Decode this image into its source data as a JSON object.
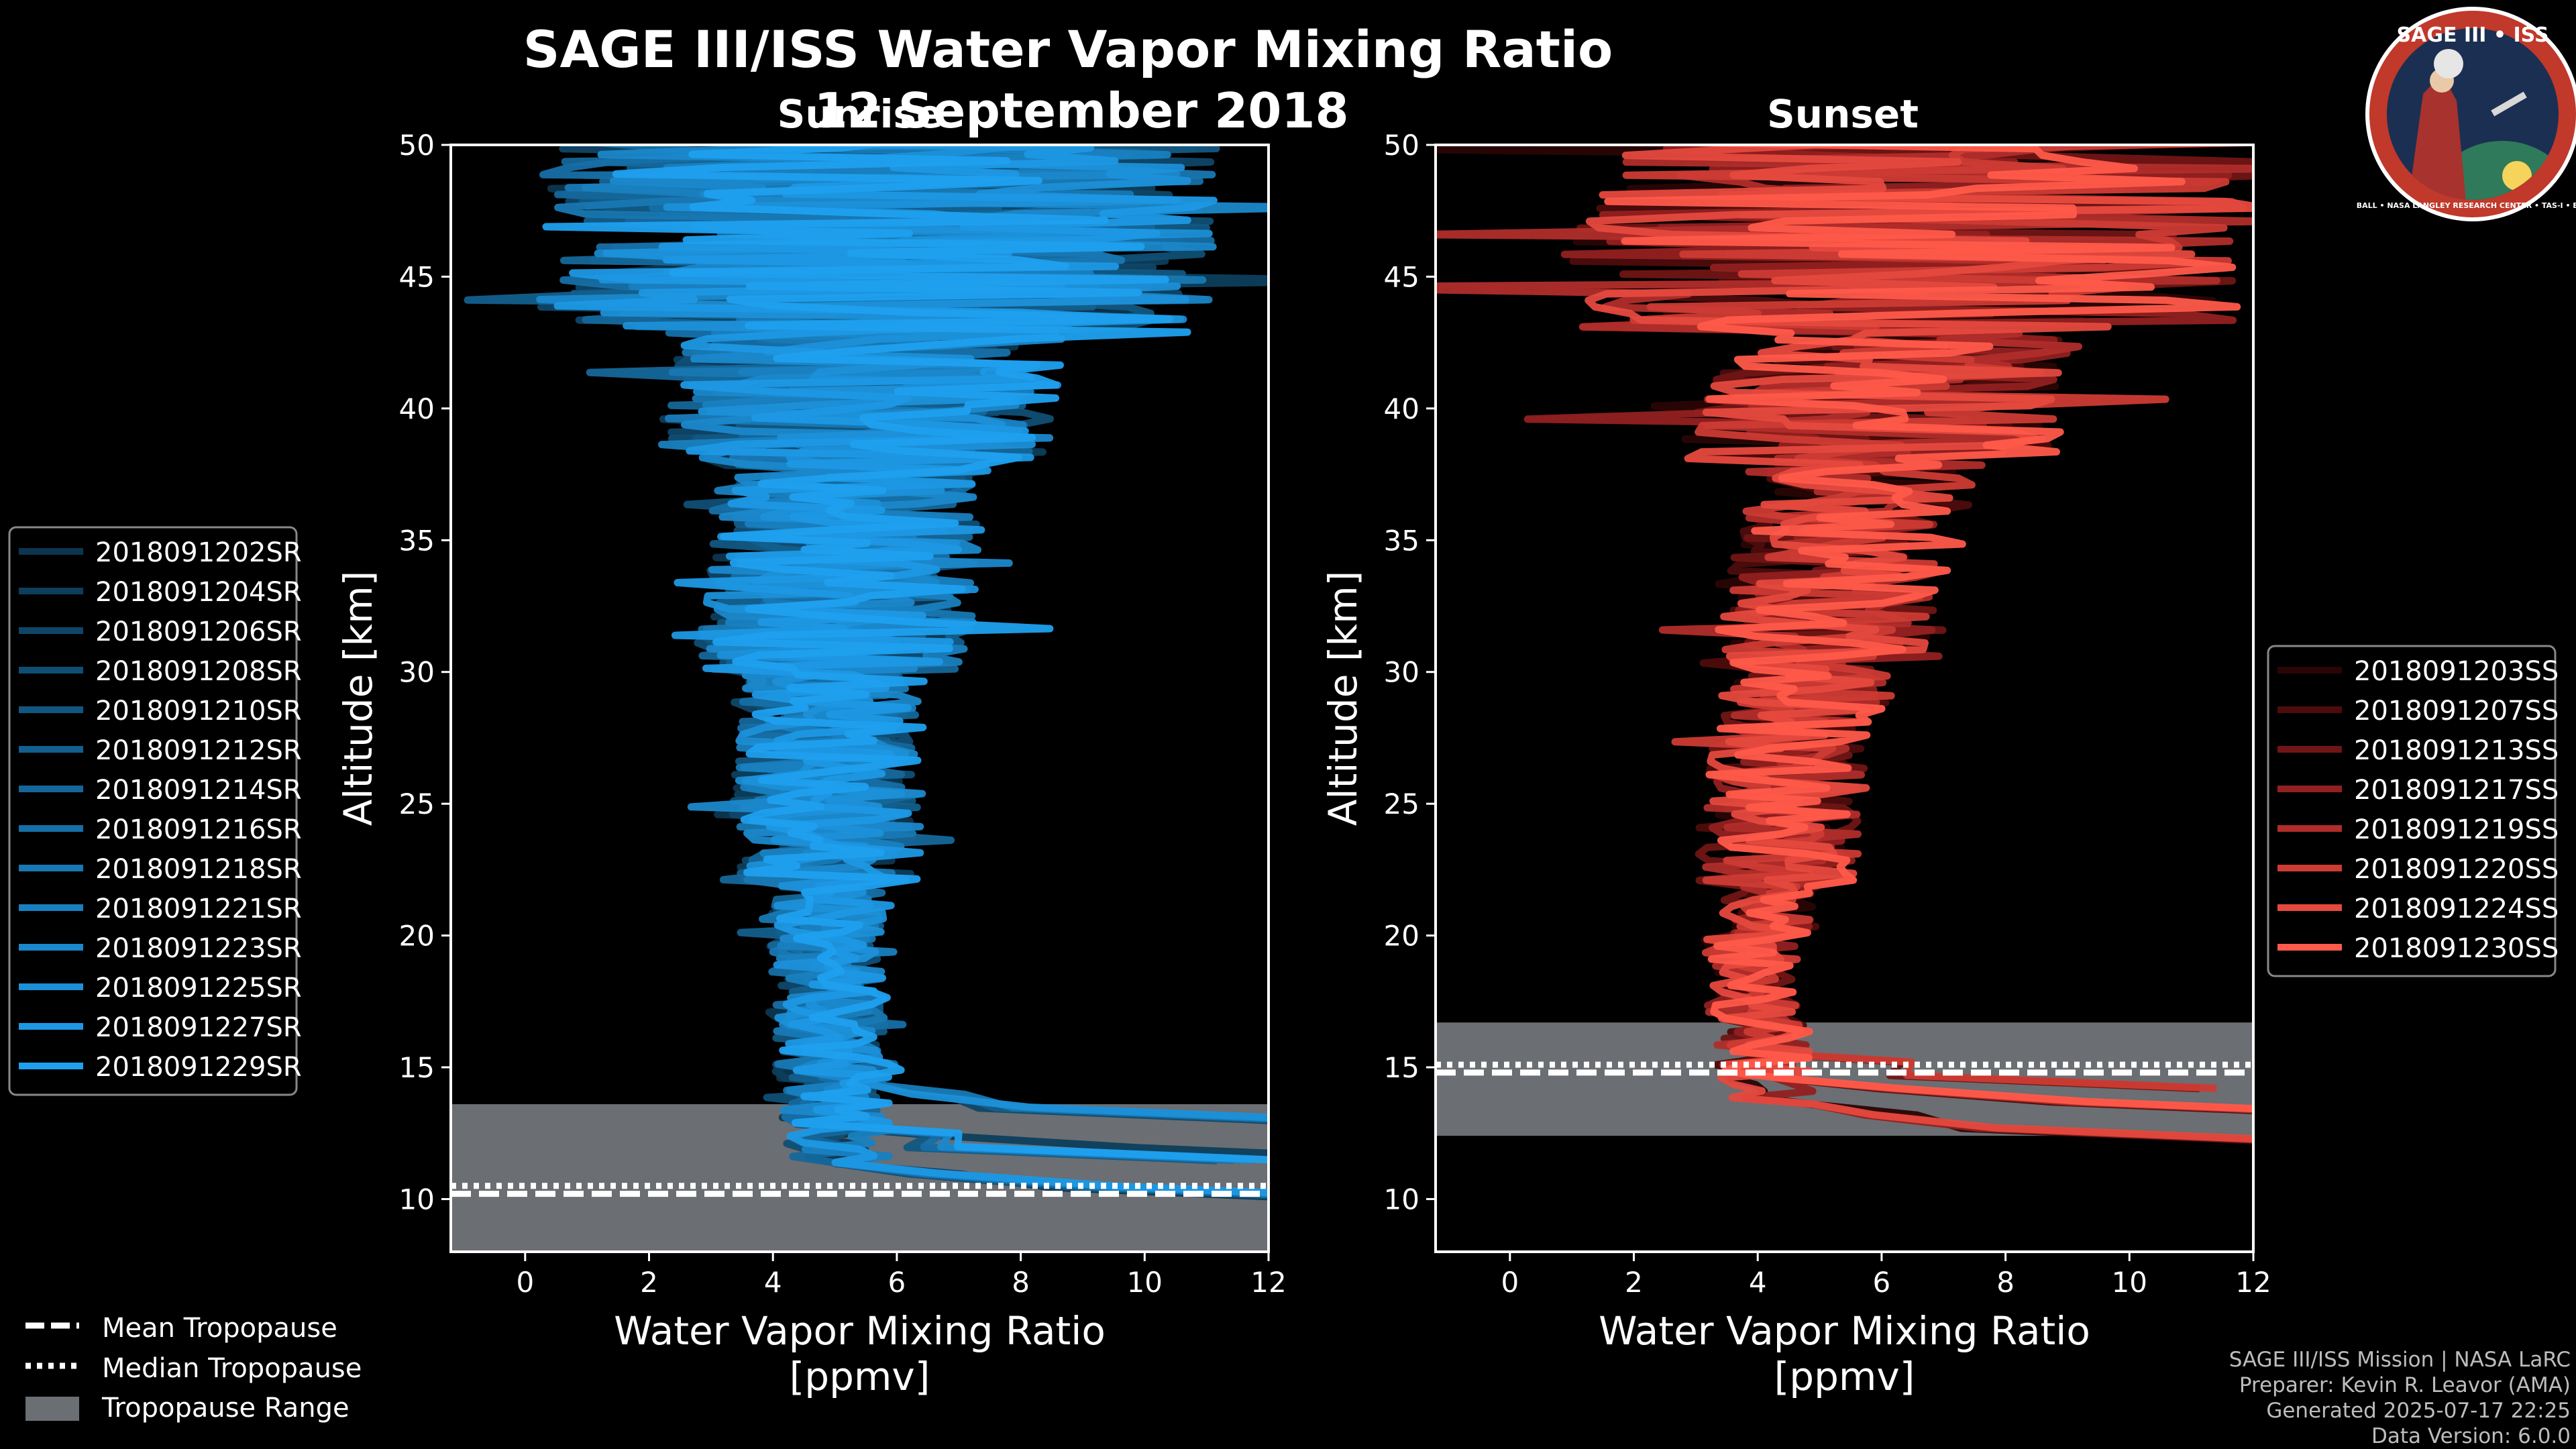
{
  "figure": {
    "title": "SAGE III/ISS Water Vapor Mixing Ratio",
    "date": "12 September 2018",
    "left_label": "Sunrise",
    "right_label": "Sunset",
    "footer": [
      "SAGE III/ISS Mission | NASA LaRC",
      "Preparer: Kevin R. Leavor (AMA)",
      "Generated 2025-07-17 22:25",
      "Data Version: 6.0.0"
    ],
    "logo": {
      "text_top": "SAGE III • ISS",
      "text_bottom": "BALL • NASA LANGLEY RESEARCH CENTER • TAS-I • ESA",
      "colors": {
        "ring": "#c0392b",
        "inner": "#1b2f52"
      }
    },
    "tropo_legend": {
      "mean": "Mean Tropopause",
      "median": "Median Tropopause",
      "range": "Tropopause Range"
    },
    "colors": {
      "sunrise": "#1f8fd6",
      "sunset": "#ff5a4a",
      "tropo_range": "#6b6e72",
      "axis": "#ffffff"
    }
  },
  "chart_data": [
    {
      "type": "line",
      "title": "Sunrise",
      "xlabel": "Water Vapor Mixing Ratio",
      "xlabel2": "[ppmv]",
      "ylabel": "Altitude [km]",
      "xlim": [
        -1.2,
        12
      ],
      "ylim": [
        8,
        50
      ],
      "xticks": [
        0,
        2,
        4,
        6,
        8,
        10,
        12
      ],
      "yticks": [
        10,
        15,
        20,
        25,
        30,
        35,
        40,
        45,
        50
      ],
      "legend_position": "left",
      "tropopause": {
        "mean": 10.2,
        "median": 10.5,
        "range": [
          7.8,
          13.6
        ]
      },
      "series": [
        {
          "name": "2018091202SR",
          "color": "#0c3650"
        },
        {
          "name": "2018091204SR",
          "color": "#0d3e5c"
        },
        {
          "name": "2018091206SR",
          "color": "#0f4668"
        },
        {
          "name": "2018091208SR",
          "color": "#104e75"
        },
        {
          "name": "2018091210SR",
          "color": "#125781"
        },
        {
          "name": "2018091212SR",
          "color": "#135f8d"
        },
        {
          "name": "2018091214SR",
          "color": "#15679a"
        },
        {
          "name": "2018091216SR",
          "color": "#166fa6"
        },
        {
          "name": "2018091218SR",
          "color": "#1878b3"
        },
        {
          "name": "2018091221SR",
          "color": "#1980bf"
        },
        {
          "name": "2018091223SR",
          "color": "#1b88cb"
        },
        {
          "name": "2018091225SR",
          "color": "#1c90d8"
        },
        {
          "name": "2018091227SR",
          "color": "#1e98e4"
        },
        {
          "name": "2018091229SR",
          "color": "#1fa0ef"
        }
      ]
    },
    {
      "type": "line",
      "title": "Sunset",
      "xlabel": "Water Vapor Mixing Ratio",
      "xlabel2": "[ppmv]",
      "ylabel": "Altitude [km]",
      "xlim": [
        -1.2,
        12
      ],
      "ylim": [
        8,
        50
      ],
      "xticks": [
        0,
        2,
        4,
        6,
        8,
        10,
        12
      ],
      "yticks": [
        10,
        15,
        20,
        25,
        30,
        35,
        40,
        45,
        50
      ],
      "legend_position": "right",
      "tropopause": {
        "mean": 14.8,
        "median": 15.1,
        "range": [
          12.4,
          16.7
        ]
      },
      "series": [
        {
          "name": "2018091203SS",
          "color": "#2a0505"
        },
        {
          "name": "2018091207SS",
          "color": "#4d0c0c"
        },
        {
          "name": "2018091213SS",
          "color": "#701515"
        },
        {
          "name": "2018091217SS",
          "color": "#922020"
        },
        {
          "name": "2018091219SS",
          "color": "#b02d2a"
        },
        {
          "name": "2018091220SS",
          "color": "#cc3b34"
        },
        {
          "name": "2018091224SS",
          "color": "#e5493e"
        },
        {
          "name": "2018091230SS",
          "color": "#ff5a4a"
        }
      ]
    }
  ]
}
